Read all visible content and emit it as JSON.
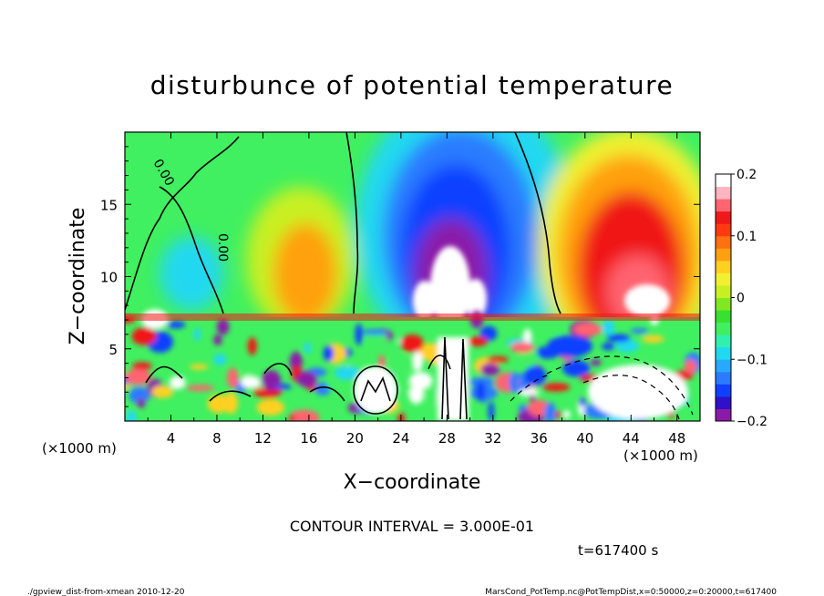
{
  "chart_data": {
    "type": "heatmap",
    "title": "disturbunce of potential temperature",
    "xlabel": "X−coordinate",
    "ylabel": "Z−coordinate",
    "x_unit_left": "(×1000 m)",
    "x_unit_right": "(×1000 m)",
    "xlim": [
      0,
      50
    ],
    "ylim": [
      0,
      20
    ],
    "x_ticks": [
      4,
      8,
      12,
      16,
      20,
      24,
      28,
      32,
      36,
      40,
      44,
      48
    ],
    "y_ticks": [
      5,
      10,
      15
    ],
    "colorbar": {
      "range": [
        -0.2,
        0.2
      ],
      "tick_values": [
        0.2,
        0.1,
        0,
        -0.1,
        -0.2
      ],
      "tick_labels": [
        "0.2",
        "0.1",
        "0",
        "−0.1",
        "−0.2"
      ],
      "colors": [
        "#8b1aa8",
        "#3010c8",
        "#1040ff",
        "#2a7bff",
        "#28a8ff",
        "#20d8f0",
        "#30f0b0",
        "#40f060",
        "#38e030",
        "#80e820",
        "#c8f020",
        "#f0f030",
        "#ffd020",
        "#ffa010",
        "#ff7010",
        "#ff3a10",
        "#f01818",
        "#ff6470",
        "#ffb4c0",
        "#ffffff"
      ]
    },
    "contour_labels": [
      "0.00",
      "0.00"
    ],
    "contour_interval_text": "CONTOUR INTERVAL = 3.000E-01",
    "time_text": "t=617400 s"
  },
  "footer": {
    "left": "./gpview_dist-from-xmean  2010-12-20",
    "right": "MarsCond_PotTemp.nc@PotTempDist,x=0:50000,z=0:20000,t=617400"
  }
}
